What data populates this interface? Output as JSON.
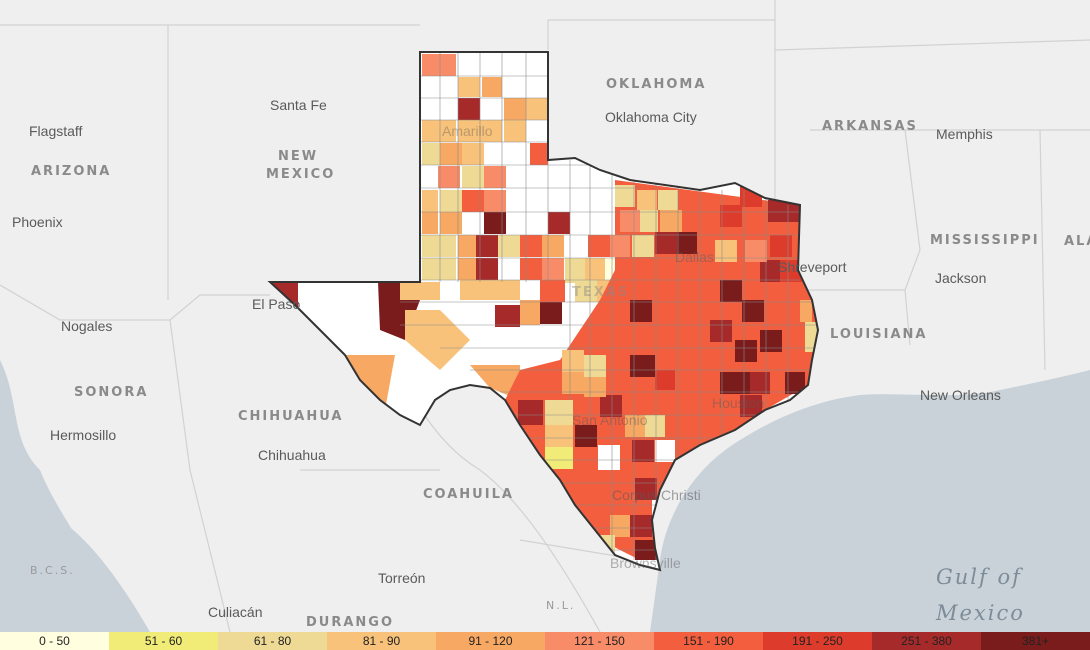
{
  "map": {
    "places": {
      "santa_fe": "Santa Fe",
      "flagstaff": "Flagstaff",
      "arizona": "ARIZONA",
      "new": "NEW",
      "mexico_state": "MEXICO",
      "phoenix": "Phoenix",
      "oklahoma": "OKLAHOMA",
      "oklahoma_city": "Oklahoma City",
      "arkansas": "ARKANSAS",
      "memphis": "Memphis",
      "mississippi": "MISSISSIPPI",
      "ala": "ALA",
      "jackson": "Jackson",
      "shreveport": "Shreveport",
      "louisiana": "LOUISIANA",
      "new_orleans": "New Orleans",
      "el_paso": "El Paso",
      "nogales": "Nogales",
      "sonora": "SONORA",
      "hermosillo": "Hermosillo",
      "chihuahua_state": "CHIHUAHUA",
      "chihuahua_city": "Chihuahua",
      "coahuila": "COAHUILA",
      "torreon": "Torreón",
      "culiacan": "Culiacán",
      "durango": "DURANGO",
      "bcs": "B.C.S.",
      "nl": "N.L.",
      "gulf": "Gulf of",
      "mexico_sea": "Mexico",
      "amarillo": "Amarillo",
      "texas": "TEXAS",
      "dallas": "Dallas",
      "san_antonio": "San Antonio",
      "houston": "Houston",
      "corpus_christi": "Corpus Christi",
      "brownsville": "Brownsville"
    }
  },
  "legend": [
    {
      "label": "0 - 50",
      "color": "#ffffe0"
    },
    {
      "label": "51 - 60",
      "color": "#f1ec78"
    },
    {
      "label": "61 - 80",
      "color": "#efda95"
    },
    {
      "label": "81 - 90",
      "color": "#f8c27a"
    },
    {
      "label": "91 - 120",
      "color": "#f7a863"
    },
    {
      "label": "121 - 150",
      "color": "#f98c68"
    },
    {
      "label": "151 - 190",
      "color": "#f25e3e"
    },
    {
      "label": "191 - 250",
      "color": "#dd3c2c"
    },
    {
      "label": "251 - 380",
      "color": "#a62a2a"
    },
    {
      "label": "381+",
      "color": "#7a1c1c"
    }
  ]
}
